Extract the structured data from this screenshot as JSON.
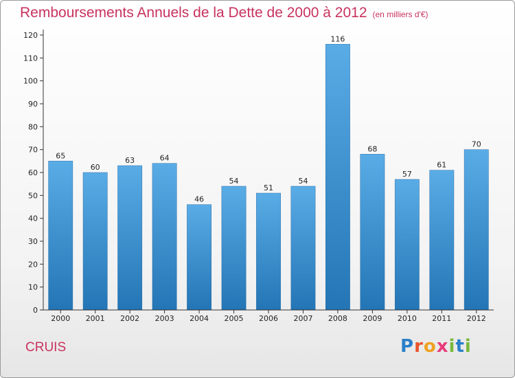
{
  "header": {
    "title": "Remboursements Annuels de la Dette de 2000 à 2012",
    "subtitle": "(en milliers d'€)"
  },
  "footer": {
    "commune": "CRUIS",
    "logo_letters": [
      "P",
      "r",
      "o",
      "x",
      "i",
      "t",
      "i"
    ],
    "logo_colors": [
      "#2a7fc9",
      "#e8542b",
      "#f0a122",
      "#e83a7a",
      "#79b83a",
      "#2a7fc9",
      "#79b83a"
    ]
  },
  "chart_data": {
    "type": "bar",
    "categories": [
      "2000",
      "2001",
      "2002",
      "2003",
      "2004",
      "2005",
      "2006",
      "2007",
      "2008",
      "2009",
      "2010",
      "2011",
      "2012"
    ],
    "values": [
      65,
      60,
      63,
      64,
      46,
      54,
      51,
      54,
      116,
      68,
      57,
      61,
      70
    ],
    "ylim": [
      0,
      120
    ],
    "yticks": [
      0,
      10,
      20,
      30,
      40,
      50,
      60,
      70,
      80,
      90,
      100,
      110,
      120
    ],
    "grid": false,
    "bar_color_top": "#5aace6",
    "bar_color_bottom": "#2375b5"
  }
}
